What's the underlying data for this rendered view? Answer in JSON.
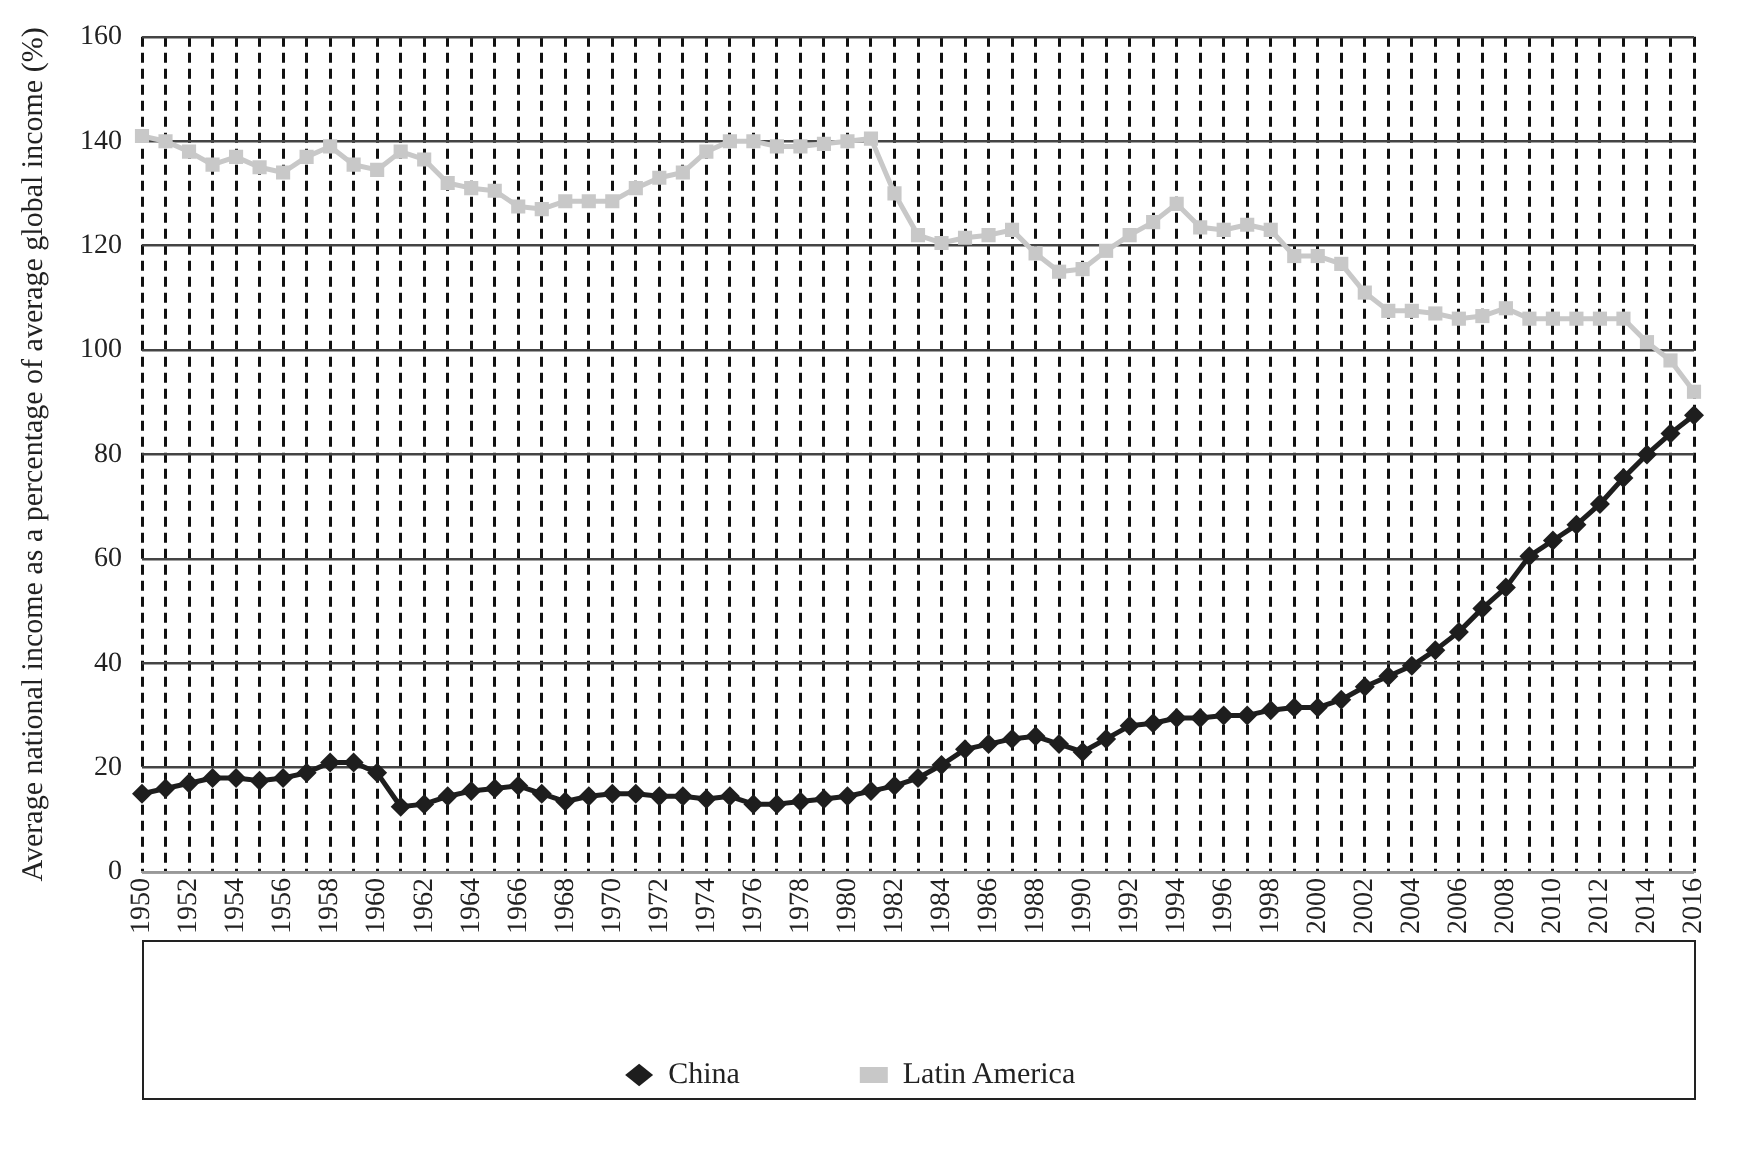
{
  "chart_data": {
    "type": "line",
    "ylabel": "Average national income as a percentage of average global income (%)",
    "categories": [
      "1950",
      null,
      "1952",
      null,
      "1954",
      null,
      "1956",
      null,
      "1958",
      null,
      "1960",
      null,
      "1962",
      null,
      "1964",
      null,
      "1966",
      null,
      "1968",
      null,
      "1970",
      null,
      "1972",
      null,
      "1974",
      null,
      "1976",
      null,
      "1978",
      null,
      "1980",
      null,
      "1982",
      null,
      "1984",
      null,
      "1986",
      null,
      "1988",
      null,
      "1990",
      null,
      "1992",
      null,
      "1994",
      null,
      "1996",
      null,
      "1998",
      null,
      "2000",
      null,
      "2002",
      null,
      "2004",
      null,
      "2006",
      null,
      "2008",
      null,
      "2010",
      null,
      "2012",
      null,
      "2014",
      null,
      "2016"
    ],
    "series": [
      {
        "name": "China",
        "color": "#1e1e1e",
        "marker": "diamond",
        "values": [
          15,
          16,
          17,
          18,
          18,
          17.5,
          18,
          19,
          21,
          21,
          19,
          12.5,
          13,
          14.5,
          15.5,
          16,
          16.5,
          15,
          13.5,
          14.5,
          15,
          15,
          14.5,
          14.5,
          14,
          14.5,
          13,
          13,
          13.5,
          14,
          14.5,
          15.5,
          16.5,
          18,
          20.5,
          23.5,
          24.5,
          25.5,
          26,
          24.5,
          23,
          25.5,
          28,
          28.5,
          29.5,
          29.5,
          30,
          30,
          31,
          31.5,
          31.5,
          33,
          35.5,
          37.5,
          39.5,
          42.5,
          46,
          50.5,
          54.5,
          60.5,
          63.5,
          66.5,
          70.5,
          75.5,
          80,
          84,
          87.5
        ]
      },
      {
        "name": "Latin America",
        "color": "#c8c8c8",
        "marker": "square",
        "values": [
          141,
          140,
          138,
          135.5,
          137,
          135,
          134,
          137,
          139,
          135.5,
          134.5,
          138,
          136.5,
          132,
          131,
          130.5,
          127.5,
          127,
          128.5,
          128.5,
          128.5,
          131,
          133,
          134,
          138,
          140,
          140,
          139,
          139,
          139.5,
          140,
          140.5,
          130,
          122,
          120.5,
          121.5,
          122,
          123,
          118.5,
          115,
          115.5,
          119,
          122,
          124.5,
          128,
          123.5,
          123,
          124,
          123,
          118,
          118,
          116.5,
          111,
          107.5,
          107.5,
          107,
          106,
          106.5,
          108,
          106,
          106,
          106,
          106,
          106,
          101.5,
          98,
          92
        ]
      }
    ],
    "ylim": [
      0,
      160
    ],
    "yticks": [
      0,
      20,
      40,
      60,
      80,
      100,
      120,
      140,
      160
    ],
    "grid": true,
    "legend": "bottom"
  }
}
